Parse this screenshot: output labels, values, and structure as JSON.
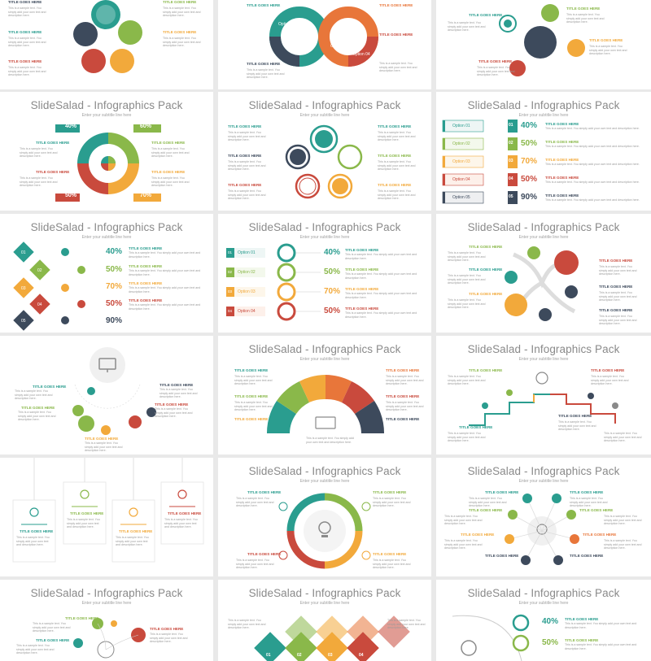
{
  "slide_title": "SlideSalad - Infographics Pack",
  "slide_subtitle": "Enter your subtitle line here",
  "title_goes_here": "TITLE GOES HERE",
  "body_text": "This is a sample text. You simply add your own text and description here.",
  "options": [
    "Option 01",
    "Option 02",
    "Option 03",
    "Option 04",
    "Option 05"
  ],
  "loop_options": [
    "Option 01",
    "Option 02",
    "Option 03",
    "Option 04"
  ],
  "donut_percents": [
    "40%",
    "60%",
    "50%",
    "70%"
  ],
  "percent_column": [
    "40%",
    "50%",
    "70%",
    "50%",
    "90%"
  ],
  "percent_column_4": [
    "40%",
    "50%",
    "70%",
    "50%"
  ],
  "numbers": [
    "01",
    "02",
    "03",
    "04",
    "05"
  ],
  "numbers_6": [
    "01",
    "02",
    "03",
    "04",
    "05",
    "06"
  ],
  "colors": {
    "teal": "#2a9d8f",
    "green": "#8ab84a",
    "yellow": "#f2a93b",
    "orange": "#e8763a",
    "red": "#c94a3d",
    "navy": "#3d4a5c",
    "grey": "#8a8a8a"
  }
}
